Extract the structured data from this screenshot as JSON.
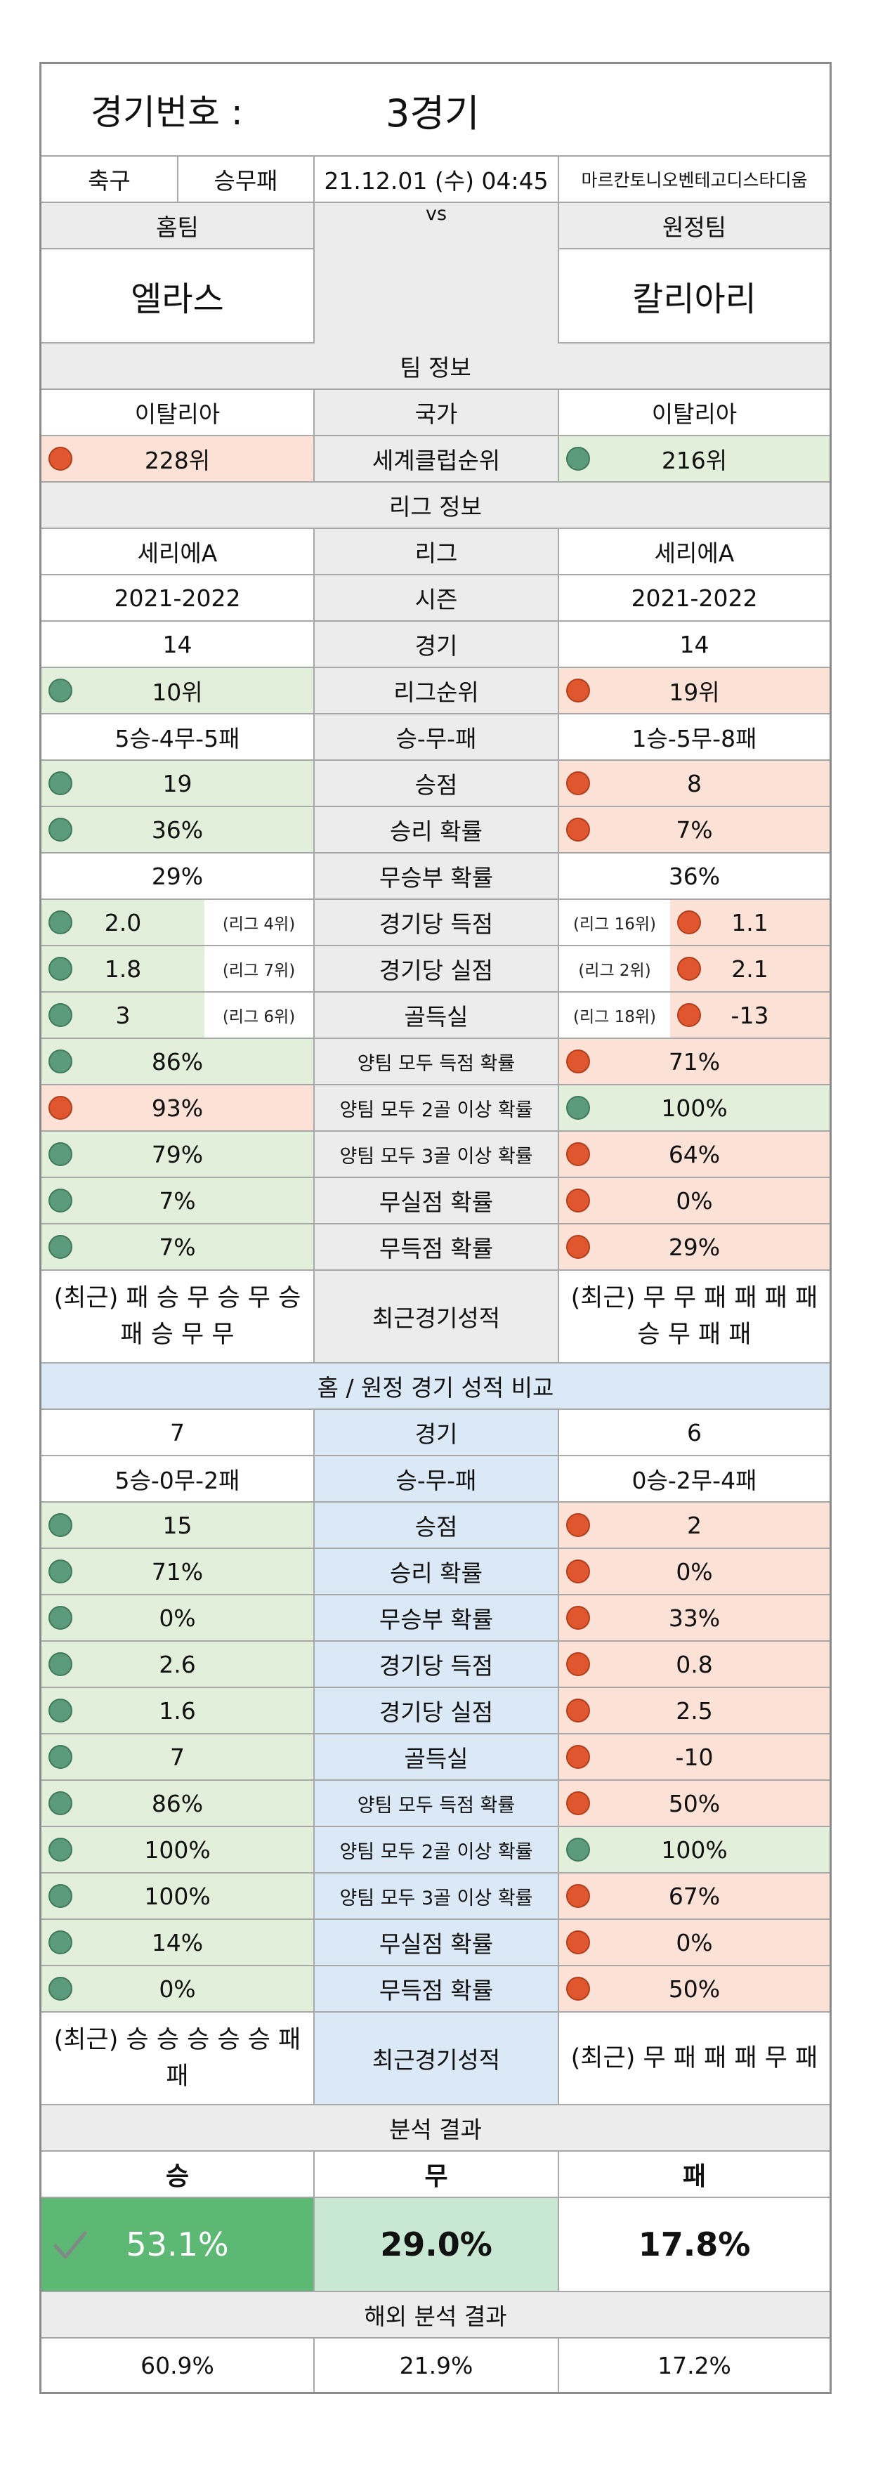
{
  "header": {
    "label": "경기번호 :",
    "value": "3경기"
  },
  "match_info": {
    "sport": "축구",
    "bet_type": "승무패",
    "datetime": "21.12.01 (수) 04:45",
    "stadium": "마르칸토니오벤테고디스타디움"
  },
  "teams": {
    "home_label": "홈팀",
    "away_label": "원정팀",
    "vs": "vs",
    "home_name": "엘라스",
    "away_name": "칼리아리"
  },
  "team_info": {
    "section": "팀 정보",
    "country_label": "국가",
    "home_country": "이탈리아",
    "away_country": "이탈리아",
    "rank_label": "세계클럽순위",
    "home_rank": "228위",
    "away_rank": "216위"
  },
  "league_info": {
    "section": "리그 정보",
    "rows": [
      {
        "label": "리그",
        "home": "세리에A",
        "away": "세리에A"
      },
      {
        "label": "시즌",
        "home": "2021-2022",
        "away": "2021-2022"
      },
      {
        "label": "경기",
        "home": "14",
        "away": "14"
      },
      {
        "label": "리그순위",
        "home": "10위",
        "away": "19위"
      },
      {
        "label": "승-무-패",
        "home": "5승-4무-5패",
        "away": "1승-5무-8패"
      },
      {
        "label": "승점",
        "home": "19",
        "away": "8"
      },
      {
        "label": "승리 확률",
        "home": "36%",
        "away": "7%"
      },
      {
        "label": "무승부 확률",
        "home": "29%",
        "away": "36%"
      },
      {
        "label": "경기당 득점",
        "home": "2.0",
        "home_rank": "(리그 4위)",
        "away": "1.1",
        "away_rank": "(리그 16위)"
      },
      {
        "label": "경기당 실점",
        "home": "1.8",
        "home_rank": "(리그 7위)",
        "away": "2.1",
        "away_rank": "(리그 2위)"
      },
      {
        "label": "골득실",
        "home": "3",
        "home_rank": "(리그 6위)",
        "away": "-13",
        "away_rank": "(리그 18위)"
      },
      {
        "label": "양팀 모두 득점 확률",
        "home": "86%",
        "away": "71%"
      },
      {
        "label": "양팀 모두 2골 이상 확률",
        "home": "93%",
        "away": "100%"
      },
      {
        "label": "양팀 모두 3골 이상 확률",
        "home": "79%",
        "away": "64%"
      },
      {
        "label": "무실점 확률",
        "home": "7%",
        "away": "0%"
      },
      {
        "label": "무득점 확률",
        "home": "7%",
        "away": "29%"
      }
    ],
    "recent_label": "최근경기성적",
    "home_recent": "(최근) 패 승 무 승 무 승 패 승 무 무",
    "away_recent": "(최근) 무 무 패 패 패 패 승 무 패 패"
  },
  "home_away": {
    "section": "홈 / 원정 경기 성적 비교",
    "rows": [
      {
        "label": "경기",
        "home": "7",
        "away": "6"
      },
      {
        "label": "승-무-패",
        "home": "5승-0무-2패",
        "away": "0승-2무-4패"
      },
      {
        "label": "승점",
        "home": "15",
        "away": "2"
      },
      {
        "label": "승리 확률",
        "home": "71%",
        "away": "0%"
      },
      {
        "label": "무승부 확률",
        "home": "0%",
        "away": "33%"
      },
      {
        "label": "경기당 득점",
        "home": "2.6",
        "away": "0.8"
      },
      {
        "label": "경기당 실점",
        "home": "1.6",
        "away": "2.5"
      },
      {
        "label": "골득실",
        "home": "7",
        "away": "-10"
      },
      {
        "label": "양팀 모두 득점 확률",
        "home": "86%",
        "away": "50%"
      },
      {
        "label": "양팀 모두 2골 이상 확률",
        "home": "100%",
        "away": "100%"
      },
      {
        "label": "양팀 모두 3골 이상 확률",
        "home": "100%",
        "away": "67%"
      },
      {
        "label": "무실점 확률",
        "home": "14%",
        "away": "0%"
      },
      {
        "label": "무득점 확률",
        "home": "0%",
        "away": "50%"
      }
    ],
    "recent_label": "최근경기성적",
    "home_recent": "(최근) 승 승 승 승 승 패 패",
    "away_recent": "(최근) 무 패 패 패 무 패"
  },
  "analysis": {
    "section": "분석 결과",
    "win_label": "승",
    "draw_label": "무",
    "lose_label": "패",
    "win": "53.1%",
    "draw": "29.0%",
    "lose": "17.8%",
    "overseas_section": "해외 분석 결과",
    "overseas_win": "60.9%",
    "overseas_draw": "21.9%",
    "overseas_lose": "17.2%"
  },
  "colors": {
    "good": "#e2efda",
    "bad": "#fbe1d6",
    "green_dot": "#5b9a7a",
    "red_dot": "#e0572f",
    "win_highlight": "#5cb872",
    "blue_section": "#dae9f5"
  }
}
